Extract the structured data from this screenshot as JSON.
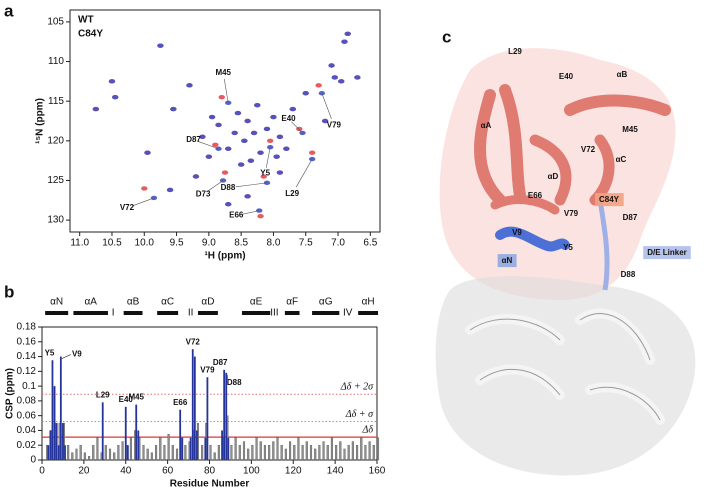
{
  "panel_labels": [
    "a",
    "b",
    "c"
  ],
  "chart_data": [
    {
      "type": "scatter",
      "xlabel": "¹H (ppm)",
      "ylabel": "¹⁵N (ppm)",
      "legend": "upper left",
      "xlim": [
        11.15,
        6.35
      ],
      "ylim": [
        131.5,
        103.5
      ],
      "xticks": [
        {
          "value": 11,
          "label": "11.0"
        },
        {
          "value": 10.5,
          "label": "10.5"
        },
        {
          "value": 10,
          "label": "10.0"
        },
        {
          "value": 9.5,
          "label": "9.5"
        },
        {
          "value": 9,
          "label": "9.0"
        },
        {
          "value": 8.5,
          "label": "8.5"
        },
        {
          "value": 8,
          "label": "8.0"
        },
        {
          "value": 7.5,
          "label": "7.5"
        },
        {
          "value": 7,
          "label": "7.0"
        },
        {
          "value": 6.5,
          "label": "6.5"
        }
      ],
      "yticks": [
        105,
        110,
        115,
        120,
        125,
        130
      ],
      "series": [
        {
          "name": "WT",
          "color": "#e8474c",
          "x": [
            10.75,
            10.5,
            10.45,
            10.0,
            9.95,
            9.75,
            9.6,
            9.55,
            9.3,
            9.2,
            9.1,
            9.0,
            8.95,
            8.9,
            8.85,
            8.8,
            8.75,
            8.7,
            8.6,
            8.55,
            8.5,
            8.45,
            8.4,
            8.35,
            8.3,
            8.25,
            8.2,
            8.15,
            8.1,
            8.05,
            8.0,
            7.95,
            7.9,
            7.8,
            7.7,
            7.6,
            7.5,
            7.4,
            7.3,
            7.2,
            7.1,
            7.05,
            6.95,
            6.9,
            6.85,
            6.7,
            8.7,
            8.4,
            8.2,
            7.9
          ],
          "values": [
            116.0,
            112.5,
            114.5,
            126.0,
            121.5,
            108.0,
            126.2,
            116.0,
            113.0,
            124.5,
            119.5,
            122.0,
            117.0,
            120.5,
            118.0,
            114.5,
            124.0,
            121.0,
            119.0,
            116.5,
            123.0,
            120.0,
            117.5,
            122.5,
            119.0,
            115.5,
            121.5,
            124.5,
            118.5,
            120.0,
            117.0,
            122.0,
            119.5,
            121.0,
            116.0,
            118.5,
            114.0,
            121.5,
            113.0,
            117.5,
            110.5,
            112.0,
            112.5,
            107.5,
            106.5,
            112.0,
            128.0,
            127.0,
            129.5,
            124.0
          ]
        },
        {
          "name": "C84Y",
          "color": "#4152c6",
          "x": [
            10.75,
            10.5,
            10.45,
            9.85,
            9.95,
            9.75,
            9.6,
            9.55,
            9.3,
            9.2,
            9.1,
            9.0,
            8.95,
            8.85,
            8.85,
            8.7,
            8.78,
            8.7,
            8.6,
            8.55,
            8.5,
            8.45,
            8.4,
            8.35,
            8.3,
            8.25,
            8.2,
            8.1,
            8.1,
            8.05,
            8.0,
            7.95,
            7.9,
            7.8,
            7.7,
            7.55,
            7.5,
            7.4,
            7.25,
            7.2,
            7.1,
            7.05,
            6.95,
            6.9,
            6.85,
            6.7,
            8.7,
            8.4,
            8.22,
            7.9
          ],
          "values": [
            116.0,
            112.5,
            114.5,
            127.2,
            121.5,
            108.0,
            126.2,
            116.0,
            113.0,
            124.5,
            119.5,
            122.0,
            117.0,
            121.0,
            118.0,
            115.2,
            125.0,
            121.0,
            119.0,
            116.5,
            123.0,
            120.0,
            117.5,
            122.5,
            119.0,
            115.5,
            121.5,
            125.3,
            118.5,
            120.8,
            117.0,
            122.0,
            119.5,
            121.0,
            116.0,
            119.0,
            114.0,
            122.3,
            114.0,
            117.5,
            110.5,
            112.0,
            112.5,
            107.5,
            106.5,
            112.0,
            128.0,
            127.0,
            128.8,
            124.0
          ],
          "point_labels": [
            null,
            null,
            null,
            "V72",
            null,
            null,
            null,
            null,
            null,
            null,
            null,
            null,
            null,
            "D87",
            null,
            "M45",
            "D73",
            null,
            null,
            null,
            null,
            null,
            null,
            null,
            null,
            null,
            null,
            "D88",
            null,
            "Y5",
            null,
            null,
            null,
            null,
            null,
            "E40",
            null,
            "L29",
            "V79",
            null,
            null,
            null,
            null,
            null,
            null,
            null,
            null,
            null,
            "E66",
            null
          ]
        }
      ]
    },
    {
      "type": "bar",
      "xlabel": "Residue Number",
      "ylabel": "CSP (ppm)",
      "xlim": [
        0,
        160
      ],
      "ylim": [
        0,
        0.18
      ],
      "xticks": [
        0,
        20,
        40,
        60,
        80,
        100,
        120,
        140,
        160
      ],
      "yticks": [
        0,
        0.02,
        0.04,
        0.06,
        0.08,
        0.1,
        0.12,
        0.14,
        0.16,
        0.18
      ],
      "series": [
        {
          "color": "#8e8e8e",
          "x": [
            2,
            4,
            6,
            8,
            10,
            12,
            14,
            16,
            18,
            20,
            22,
            24,
            26,
            28,
            30,
            32,
            34,
            36,
            38,
            40,
            42,
            44,
            46,
            48,
            50,
            52,
            54,
            56,
            58,
            60,
            62,
            64,
            66,
            68,
            70,
            72,
            74,
            76,
            78,
            80,
            82,
            84,
            86,
            88,
            90,
            92,
            94,
            96,
            98,
            100,
            102,
            104,
            106,
            108,
            110,
            112,
            114,
            116,
            118,
            120,
            122,
            124,
            126,
            128,
            130,
            132,
            134,
            136,
            138,
            140,
            142,
            144,
            146,
            148,
            150,
            152,
            154,
            156,
            158,
            160
          ],
          "values": [
            0.02,
            0.04,
            0.05,
            0.05,
            0.05,
            0.02,
            0.01,
            0.015,
            0.02,
            0.01,
            0.005,
            0.02,
            0.03,
            0.01,
            0.02,
            0.015,
            0.01,
            0.02,
            0.025,
            0.02,
            0.03,
            0.04,
            0.03,
            0.02,
            0.015,
            0.01,
            0.02,
            0.03,
            0.02,
            0.035,
            0.02,
            0.015,
            0.03,
            0.02,
            0.025,
            0.04,
            0.05,
            0.02,
            0.05,
            0.02,
            0.01,
            0.02,
            0.03,
            0.06,
            0.02,
            0.03,
            0.02,
            0.025,
            0.015,
            0.02,
            0.03,
            0.025,
            0.02,
            0.02,
            0.025,
            0.03,
            0.02,
            0.015,
            0.025,
            0.02,
            0.03,
            0.02,
            0.025,
            0.02,
            0.015,
            0.02,
            0.025,
            0.02,
            0.03,
            0.02,
            0.025,
            0.015,
            0.02,
            0.025,
            0.02,
            0.03,
            0.02,
            0.025,
            0.02,
            0.03
          ]
        },
        {
          "color": "#25349a",
          "x": [
            3,
            4,
            5,
            6,
            7,
            8,
            9,
            10,
            11,
            29,
            40,
            41,
            45,
            46,
            66,
            67,
            71,
            72,
            73,
            74,
            78,
            79,
            86,
            87,
            88,
            89
          ],
          "values": [
            0.02,
            0.04,
            0.135,
            0.1,
            0.05,
            0.02,
            0.14,
            0.05,
            0.02,
            0.078,
            0.072,
            0.02,
            0.075,
            0.04,
            0.068,
            0.03,
            0.03,
            0.15,
            0.14,
            0.04,
            0.03,
            0.112,
            0.04,
            0.122,
            0.118,
            0.03
          ],
          "point_labels": [
            null,
            null,
            "Y5",
            null,
            null,
            null,
            "V9",
            null,
            null,
            "L29",
            "E40",
            null,
            "M45",
            null,
            "E66",
            null,
            null,
            "V72",
            null,
            null,
            null,
            "V79",
            null,
            "D87",
            "D88",
            null
          ]
        }
      ],
      "reference_lines": [
        {
          "value": 0.089,
          "label": "Δδ + 2σ",
          "color": "#e07070",
          "style": "dotted"
        },
        {
          "value": 0.052,
          "label": "Δδ + σ",
          "color": "#e07070",
          "style": "dotted"
        },
        {
          "value": 0.031,
          "label": "Δδ",
          "color": "#e03434",
          "style": "solid"
        }
      ],
      "secondary_structure": [
        {
          "label": "αN",
          "range": [
            1.5,
            12.5
          ]
        },
        {
          "label": "αA",
          "range": [
            15,
            31.5
          ]
        },
        {
          "label": "I",
          "at": 34
        },
        {
          "label": "αB",
          "range": [
            39,
            48
          ]
        },
        {
          "label": "αC",
          "range": [
            55,
            65
          ]
        },
        {
          "label": "II",
          "at": 71
        },
        {
          "label": "αD",
          "range": [
            74.5,
            84
          ]
        },
        {
          "label": "αE",
          "range": [
            95.5,
            109
          ]
        },
        {
          "label": "III",
          "at": 111
        },
        {
          "label": "αF",
          "range": [
            116,
            123
          ]
        },
        {
          "label": "αG",
          "range": [
            129,
            142
          ]
        },
        {
          "label": "IV",
          "at": 146
        },
        {
          "label": "αH",
          "range": [
            151,
            160.5
          ]
        }
      ]
    }
  ],
  "structure": {
    "labels": [
      "L29",
      "E40",
      "αB",
      "αA",
      "M45",
      "V72",
      "αC",
      "αD",
      "E66",
      "V79",
      "C84Y",
      "D87",
      "V9",
      "Y5",
      "αN",
      "D/E Linker",
      "D88"
    ]
  }
}
